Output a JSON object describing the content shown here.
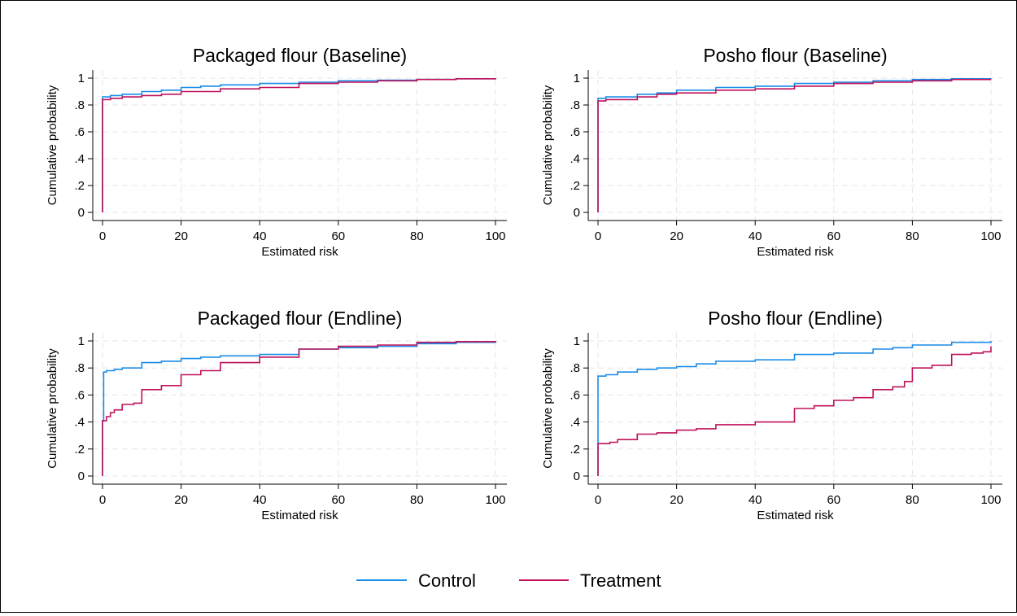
{
  "legend": {
    "placement": "bottom-center",
    "entries": [
      {
        "name": "Control",
        "color": "#1a8ce8"
      },
      {
        "name": "Treatment",
        "color": "#c0115a"
      }
    ]
  },
  "chart_data": [
    {
      "type": "line",
      "title": "Packaged flour (Baseline)",
      "xlabel": "Estimated risk",
      "ylabel": "Cumulative probability",
      "xlim": [
        0,
        100
      ],
      "ylim": [
        0,
        1
      ],
      "xticks": [
        "0",
        "20",
        "40",
        "60",
        "80",
        "100"
      ],
      "yticks": [
        "0",
        ".2",
        ".4",
        ".6",
        ".8",
        "1"
      ],
      "grid": true,
      "step": true,
      "series": [
        {
          "name": "Control",
          "x": [
            0,
            0,
            2,
            5,
            10,
            15,
            20,
            25,
            30,
            40,
            50,
            60,
            70,
            80,
            90,
            100
          ],
          "y": [
            0,
            0.86,
            0.87,
            0.88,
            0.9,
            0.91,
            0.93,
            0.94,
            0.95,
            0.96,
            0.97,
            0.98,
            0.985,
            0.99,
            0.995,
            1.0
          ]
        },
        {
          "name": "Treatment",
          "x": [
            0,
            0,
            2,
            5,
            10,
            15,
            20,
            25,
            30,
            40,
            50,
            60,
            70,
            80,
            90,
            100
          ],
          "y": [
            0,
            0.84,
            0.85,
            0.86,
            0.87,
            0.88,
            0.9,
            0.9,
            0.92,
            0.93,
            0.96,
            0.97,
            0.98,
            0.99,
            0.995,
            1.0
          ]
        }
      ]
    },
    {
      "type": "line",
      "title": "Posho flour (Baseline)",
      "xlabel": "Estimated risk",
      "ylabel": "Cumulative probability",
      "xlim": [
        0,
        100
      ],
      "ylim": [
        0,
        1
      ],
      "xticks": [
        "0",
        "20",
        "40",
        "60",
        "80",
        "100"
      ],
      "yticks": [
        "0",
        ".2",
        ".4",
        ".6",
        ".8",
        "1"
      ],
      "grid": true,
      "step": true,
      "series": [
        {
          "name": "Control",
          "x": [
            0,
            0,
            2,
            10,
            15,
            20,
            30,
            40,
            50,
            60,
            70,
            80,
            90,
            100
          ],
          "y": [
            0,
            0.85,
            0.86,
            0.88,
            0.89,
            0.91,
            0.93,
            0.94,
            0.96,
            0.97,
            0.98,
            0.99,
            0.995,
            1.0
          ]
        },
        {
          "name": "Treatment",
          "x": [
            0,
            0,
            2,
            10,
            15,
            20,
            30,
            40,
            50,
            60,
            70,
            80,
            90,
            100
          ],
          "y": [
            0,
            0.83,
            0.84,
            0.86,
            0.88,
            0.89,
            0.91,
            0.92,
            0.94,
            0.96,
            0.97,
            0.98,
            0.99,
            0.99
          ]
        }
      ]
    },
    {
      "type": "line",
      "title": "Packaged flour (Endline)",
      "xlabel": "Estimated risk",
      "ylabel": "Cumulative probability",
      "xlim": [
        0,
        100
      ],
      "ylim": [
        0,
        1
      ],
      "xticks": [
        "0",
        "20",
        "40",
        "60",
        "80",
        "100"
      ],
      "yticks": [
        "0",
        ".2",
        ".4",
        ".6",
        ".8",
        "1"
      ],
      "grid": true,
      "step": true,
      "series": [
        {
          "name": "Control",
          "x": [
            0,
            0,
            0.3,
            1,
            3,
            5,
            10,
            15,
            20,
            25,
            30,
            40,
            50,
            60,
            70,
            80,
            90,
            100
          ],
          "y": [
            0,
            0.41,
            0.77,
            0.78,
            0.79,
            0.8,
            0.84,
            0.85,
            0.87,
            0.88,
            0.89,
            0.9,
            0.94,
            0.95,
            0.96,
            0.98,
            0.99,
            1.0
          ]
        },
        {
          "name": "Treatment",
          "x": [
            0,
            0,
            1,
            2,
            3,
            5,
            8,
            10,
            15,
            20,
            25,
            30,
            40,
            50,
            60,
            70,
            80,
            90,
            100
          ],
          "y": [
            0,
            0.41,
            0.44,
            0.47,
            0.49,
            0.53,
            0.54,
            0.64,
            0.67,
            0.75,
            0.78,
            0.84,
            0.88,
            0.94,
            0.96,
            0.97,
            0.99,
            0.995,
            1.0
          ]
        }
      ]
    },
    {
      "type": "line",
      "title": "Posho flour (Endline)",
      "xlabel": "Estimated risk",
      "ylabel": "Cumulative probability",
      "xlim": [
        0,
        100
      ],
      "ylim": [
        0,
        1
      ],
      "xticks": [
        "0",
        "20",
        "40",
        "60",
        "80",
        "100"
      ],
      "yticks": [
        "0",
        ".2",
        ".4",
        ".6",
        ".8",
        "1"
      ],
      "grid": true,
      "step": true,
      "series": [
        {
          "name": "Control",
          "x": [
            0,
            0,
            2,
            5,
            10,
            15,
            20,
            25,
            30,
            40,
            50,
            60,
            70,
            75,
            80,
            90,
            100
          ],
          "y": [
            0,
            0.74,
            0.75,
            0.77,
            0.79,
            0.8,
            0.81,
            0.83,
            0.85,
            0.86,
            0.9,
            0.91,
            0.94,
            0.95,
            0.97,
            0.99,
            1.0
          ]
        },
        {
          "name": "Treatment",
          "x": [
            0,
            0,
            3,
            5,
            10,
            15,
            20,
            25,
            30,
            40,
            50,
            55,
            60,
            65,
            70,
            75,
            78,
            80,
            85,
            90,
            95,
            98,
            100
          ],
          "y": [
            0,
            0.24,
            0.25,
            0.27,
            0.31,
            0.32,
            0.34,
            0.35,
            0.38,
            0.4,
            0.5,
            0.52,
            0.56,
            0.58,
            0.64,
            0.66,
            0.7,
            0.8,
            0.82,
            0.9,
            0.91,
            0.92,
            0.96
          ]
        }
      ]
    }
  ]
}
